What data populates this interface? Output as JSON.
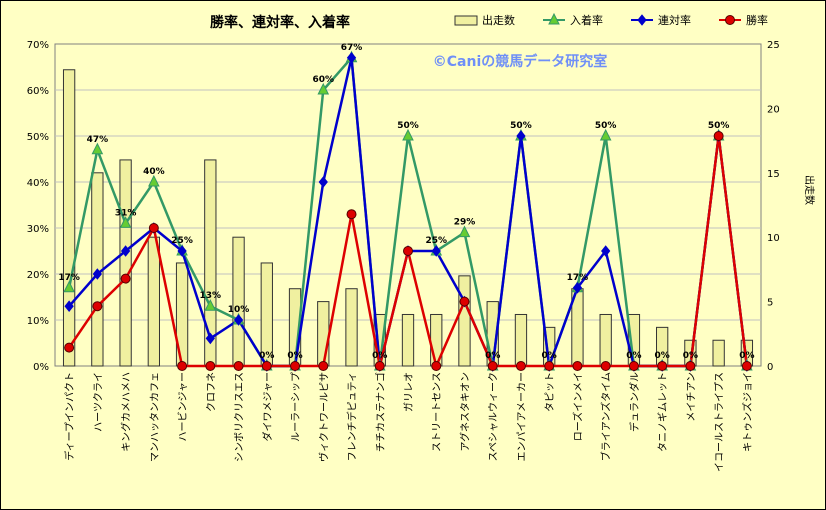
{
  "chart_data": {
    "type": "bar+line",
    "title": "勝率、連対率、入着率",
    "watermark": "©Caniの競馬データ研究室",
    "ylabel_right": "出走数",
    "ylim_left": [
      0,
      70
    ],
    "ylim_right": [
      0,
      25
    ],
    "yticks_left": [
      "0%",
      "10%",
      "20%",
      "30%",
      "40%",
      "50%",
      "60%",
      "70%"
    ],
    "yticks_right": [
      "0",
      "5",
      "10",
      "15",
      "20",
      "25"
    ],
    "grid": true,
    "legend_position": "top-right",
    "categories": [
      "ディープインパクト",
      "ハーツクライ",
      "キングカメハメハ",
      "マンハッタンカフェ",
      "ハービンジャー",
      "クロフネ",
      "シンボリクリスエス",
      "ダイワメジャー",
      "ルーラーシップ",
      "ヴィクトワールピサ",
      "フレンチデピュティ",
      "チチカステナンゴ",
      "ガリレオ",
      "ストリートセンス",
      "アグネスタキオン",
      "スペシャルウィーク",
      "エンパイアメーカー",
      "タピット",
      "ローズインメイ",
      "ブライアンズタイム",
      "デュランダル",
      "タニノギムレット",
      "メイチアン",
      "イコールストライプス",
      "キトゥンズジョイ"
    ],
    "series": [
      {
        "name": "出走数",
        "type": "bar",
        "axis": "right",
        "color": "#f0f0a0",
        "values": [
          23,
          15,
          16,
          10,
          8,
          16,
          10,
          8,
          6,
          5,
          6,
          4,
          4,
          4,
          7,
          5,
          4,
          3,
          6,
          4,
          4,
          3,
          2,
          2,
          2
        ]
      },
      {
        "name": "入着率",
        "type": "line",
        "axis": "left",
        "color": "#339966",
        "marker": "triangle",
        "values": [
          17,
          47,
          31,
          40,
          25,
          13,
          10,
          0,
          0,
          60,
          67,
          0,
          50,
          25,
          29,
          0,
          50,
          0,
          17,
          50,
          0,
          0,
          0,
          50,
          0
        ]
      },
      {
        "name": "連対率",
        "type": "line",
        "axis": "left",
        "color": "#0000cc",
        "marker": "diamond",
        "values": [
          13,
          20,
          25,
          30,
          25,
          6,
          10,
          0,
          0,
          40,
          67,
          0,
          25,
          25,
          14,
          0,
          50,
          0,
          17,
          25,
          0,
          0,
          0,
          50,
          0
        ]
      },
      {
        "name": "勝率",
        "type": "line",
        "axis": "left",
        "color": "#dd0000",
        "marker": "circle",
        "values": [
          4,
          13,
          19,
          30,
          0,
          0,
          0,
          0,
          0,
          0,
          33,
          0,
          25,
          0,
          14,
          0,
          0,
          0,
          0,
          0,
          0,
          0,
          0,
          50,
          0
        ]
      }
    ],
    "labels": [
      "17%",
      "47%",
      "31%",
      "40%",
      "25%",
      "13%",
      "10%",
      "0%",
      "0%",
      "60%",
      "67%",
      "0%",
      "50%",
      "25%",
      "29%",
      "0%",
      "50%",
      "0%",
      "17%",
      "50%",
      "0%",
      "0%",
      "0%",
      "50%",
      "0%"
    ]
  }
}
